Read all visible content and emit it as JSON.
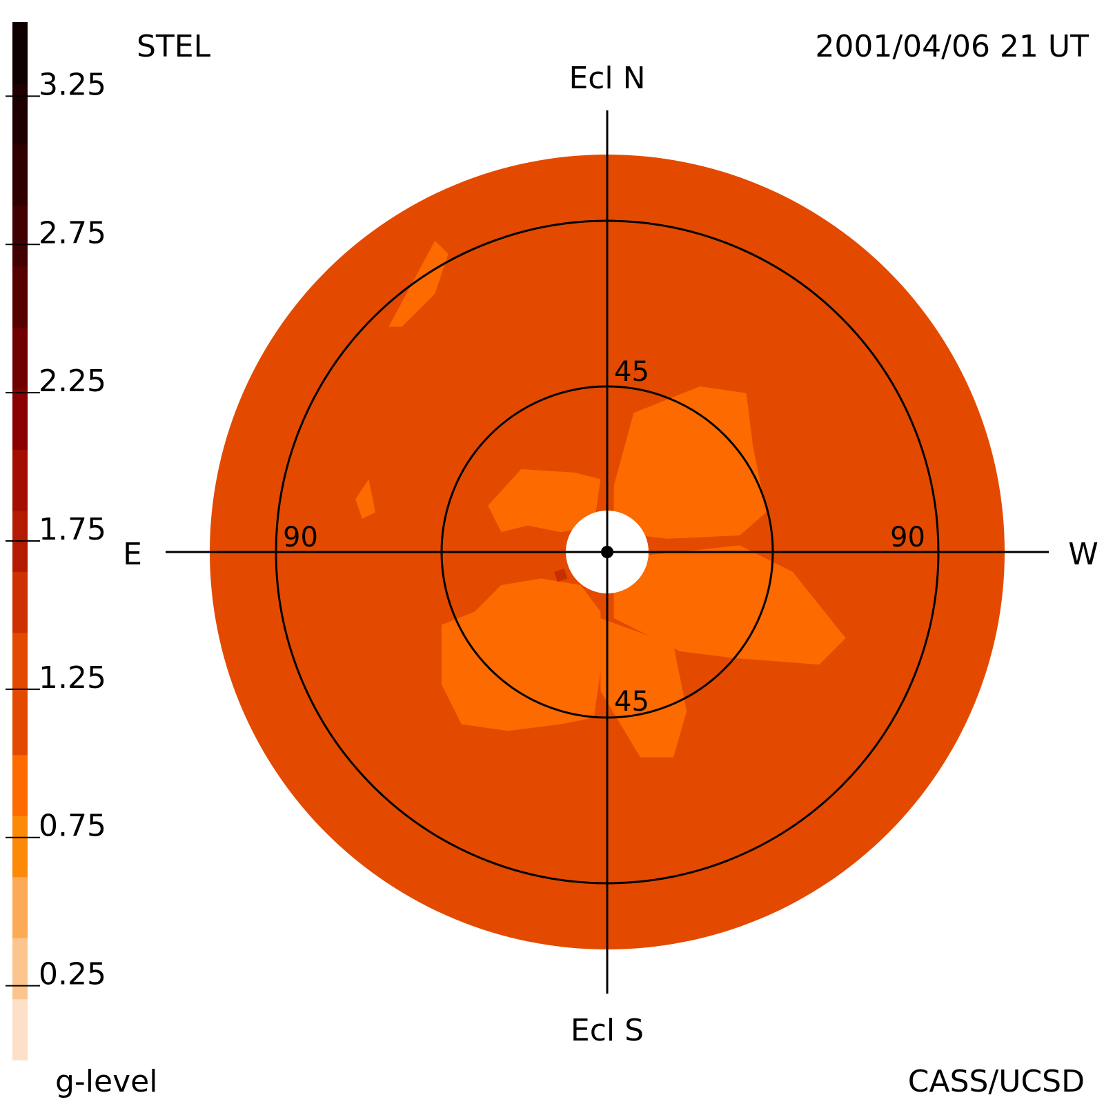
{
  "header": {
    "instrument": "STEL",
    "timestamp": "2001/04/06 21 UT"
  },
  "footer": {
    "colorbar_label": "g-level",
    "credit": "CASS/UCSD"
  },
  "colors": {
    "background_disk": "#e34a00",
    "enhancement": "#fc6a00",
    "dark_spot": "#c63000",
    "occulter": "#ffffff",
    "lines": "#000000"
  },
  "chart_data": {
    "type": "heatmap",
    "projection": "fisheye sky map (elongation from Sun)",
    "orientation": {
      "top": "Ecl N",
      "bottom": "Ecl S",
      "left": "E",
      "right": "W"
    },
    "elongation_circles": [
      {
        "value": 45,
        "labels": [
          "45",
          "45"
        ]
      },
      {
        "value": 90,
        "labels": [
          "90",
          "90"
        ]
      }
    ],
    "field_max_elongation": 108,
    "colorbar": {
      "label": "g-level",
      "range": [
        0,
        3.5
      ],
      "step": 0.25,
      "ticks": [
        0.25,
        0.75,
        1.25,
        1.75,
        2.25,
        2.75,
        3.25
      ],
      "tick_labels": [
        "0.25",
        "0.75",
        "1.25",
        "1.75",
        "2.25",
        "2.75",
        "3.25"
      ],
      "colors": [
        "#fde0c8",
        "#fcc58e",
        "#fcaa55",
        "#fc8a08",
        "#fc6a00",
        "#e34a00",
        "#e34a00",
        "#cf3000",
        "#b41a00",
        "#a30e00",
        "#8a0000",
        "#700000",
        "#570000",
        "#420000",
        "#300000",
        "#1f0000",
        "#0f0000"
      ]
    },
    "dominant_level": [
      1.0,
      1.25
    ],
    "enhanced_region_level": [
      0.75,
      1.0
    ],
    "regions": [
      {
        "name": "west-north lobe",
        "level": 0.8
      },
      {
        "name": "west lobe",
        "level": 0.8
      },
      {
        "name": "south lobe",
        "level": 0.8
      },
      {
        "name": "south-east lobe",
        "level": 0.8
      },
      {
        "name": "east-center lobe",
        "level": 0.8
      },
      {
        "name": "north-east blob",
        "level": 0.8
      },
      {
        "name": "east small blob",
        "level": 0.8
      },
      {
        "name": "near-sun spot",
        "level": 1.4
      }
    ]
  }
}
